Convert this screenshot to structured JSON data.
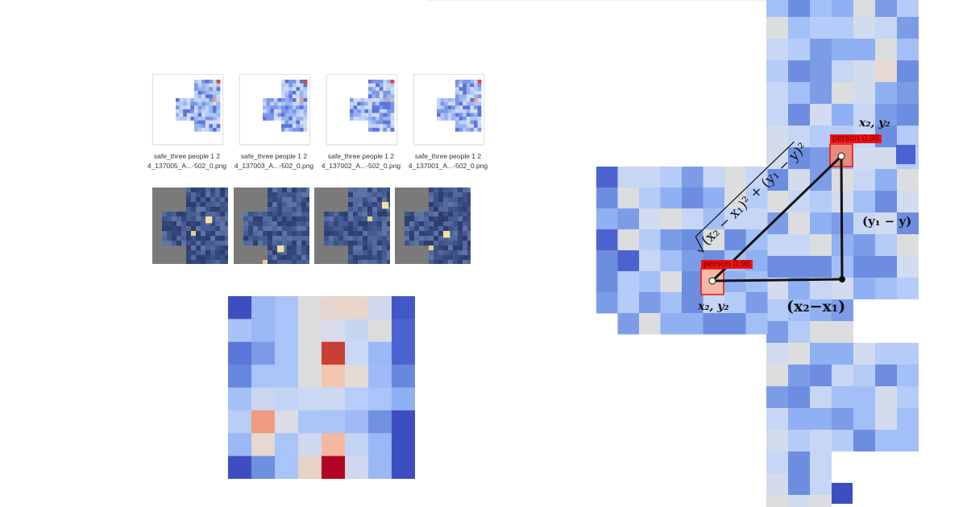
{
  "thumbnails": [
    {
      "name_line1": "safe_three people 1 2",
      "name_line2": "4_137005_A...-502_0.png"
    },
    {
      "name_line1": "safe_three people 1 2",
      "name_line2": "4_137003_A...-502_0.png"
    },
    {
      "name_line1": "safe_three people 1 2",
      "name_line2": "4_137002_A...-502_0.png"
    },
    {
      "name_line1": "safe_three people 1 2",
      "name_line2": "4_137001_A...-502_0.png"
    }
  ],
  "detection": {
    "label_top": "person  0.98",
    "label_bottom": "person  0.98"
  },
  "formula": {
    "point_top": "x₂, y₂",
    "point_bottom": "x₂, y₂",
    "vertical_side": "(y₁ − y)",
    "horizontal_side": "(x₂−x₁)",
    "hypotenuse": "(x₂ − x₁)² + (y₁ − y)²"
  },
  "colors": {
    "cold_dark": "#3b4cc0",
    "cold": "#7da0f0",
    "neutral": "#dcdddd",
    "warm": "#f4a488",
    "hot": "#b40426",
    "label_red": "#ee1111"
  }
}
